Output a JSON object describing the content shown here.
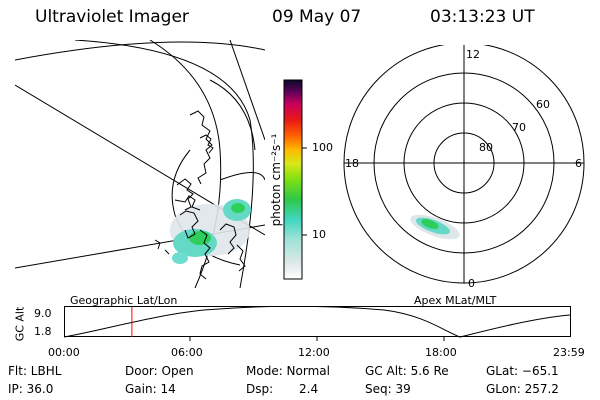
{
  "header": {
    "instrument": "Ultraviolet Imager",
    "date": "09 May 07",
    "time": "03:13:23 UT"
  },
  "geo_map": {
    "label": "Geographic Lat/Lon"
  },
  "colorbar": {
    "unit_label": "photon cm⁻²s⁻¹",
    "ticks": [
      "100",
      "10"
    ]
  },
  "polar_plot": {
    "label": "Apex MLat/MLT",
    "mlt_labels": {
      "top": "12",
      "right": "6",
      "bottom": "0",
      "left": "18"
    },
    "lat_labels": [
      "60",
      "70",
      "80"
    ]
  },
  "altitude_plot": {
    "ylabel": "GC Alt",
    "yticks": [
      "9.0",
      "1.8"
    ],
    "xticks": [
      "00:00",
      "06:00",
      "12:00",
      "18:00",
      "23:59"
    ],
    "marker_color": "#ff0000",
    "marker_time_hours": 3.22
  },
  "footer": {
    "filter": "Flt: LBHL",
    "door": "Door: Open",
    "mode": "Mode: Normal",
    "gc_alt": "GC Alt: 5.6 Re",
    "glat": "GLat: −65.1",
    "ip": "IP: 36.0",
    "gain": "Gain: 14",
    "dsp_label": "Dsp:",
    "dsp_value": "2.4",
    "seq": "Seq: 39",
    "glon": "GLon: 257.2"
  },
  "colors": {
    "colorbar_stops": [
      "#ffffff",
      "#dfe8e8",
      "#3fd6c0",
      "#2fc848",
      "#7fe012",
      "#d8e818",
      "#ffb800",
      "#ff6000",
      "#e81818",
      "#c8005a",
      "#60005a",
      "#0a0a2a"
    ],
    "aurora": "#2dcf5a"
  }
}
